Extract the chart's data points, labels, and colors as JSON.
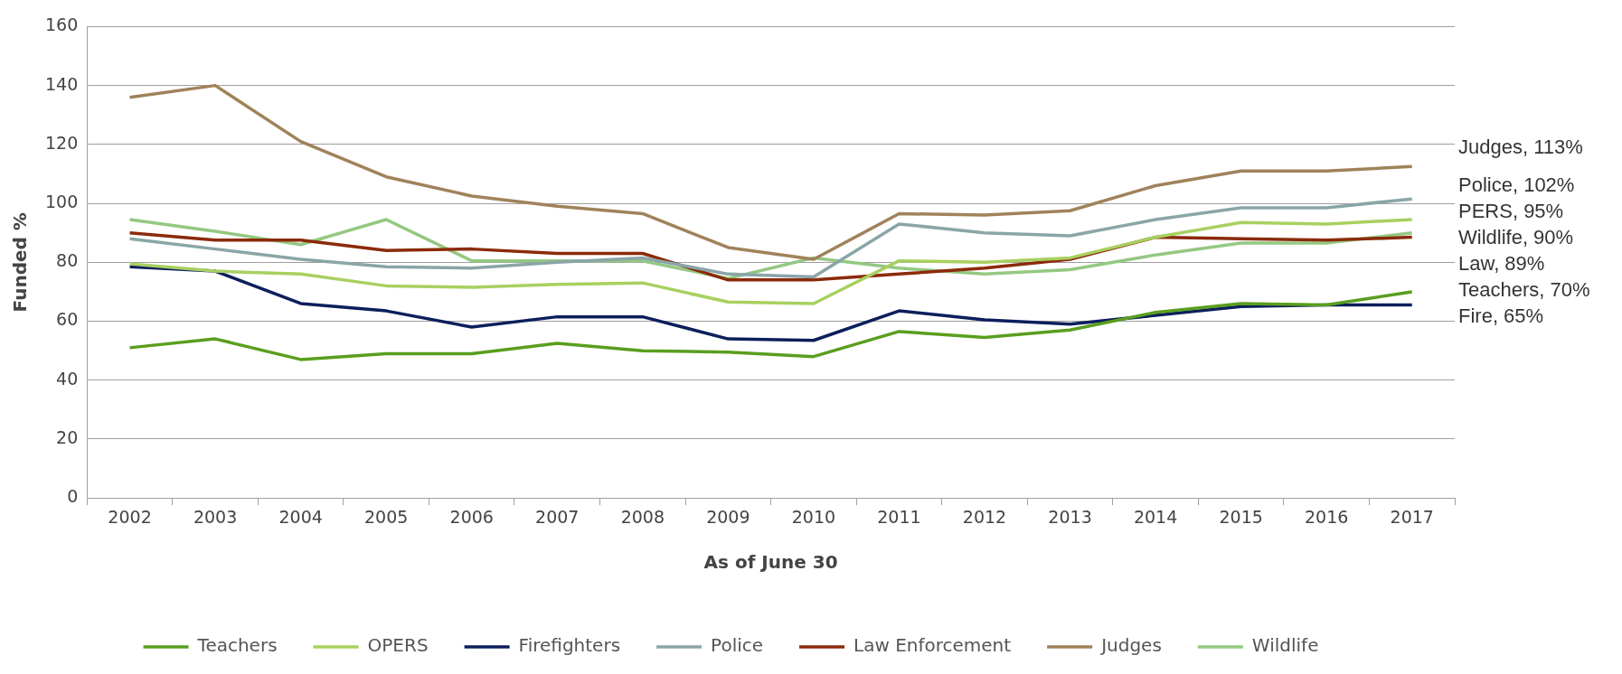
{
  "chart_data": {
    "type": "line",
    "xlabel": "As of June 30",
    "ylabel": "Funded %",
    "categories": [
      "2002",
      "2003",
      "2004",
      "2005",
      "2006",
      "2007",
      "2008",
      "2009",
      "2010",
      "2011",
      "2012",
      "2013",
      "2014",
      "2015",
      "2016",
      "2017"
    ],
    "series": [
      {
        "name": "Teachers",
        "color": "#5a9e1e",
        "values": [
          51,
          54,
          47,
          49,
          49,
          52.5,
          50,
          49.5,
          48,
          56.5,
          54.5,
          57,
          63,
          66,
          65.5,
          70
        ]
      },
      {
        "name": "OPERS",
        "color": "#a8d060",
        "values": [
          79.5,
          77,
          76,
          72,
          71.5,
          72.5,
          73,
          66.5,
          66,
          80.5,
          80,
          81.5,
          88.5,
          93.5,
          93,
          94.5
        ]
      },
      {
        "name": "Firefighters",
        "color": "#0c1f5c",
        "values": [
          78.5,
          77,
          66,
          63.5,
          58,
          61.5,
          61.5,
          54,
          53.5,
          63.5,
          60.5,
          59,
          62,
          65,
          65.5,
          65.5
        ]
      },
      {
        "name": "Police",
        "color": "#8aa5a8",
        "values": [
          88,
          84.5,
          81,
          78.5,
          78,
          80,
          81.5,
          76,
          75,
          93,
          90,
          89,
          94.5,
          98.5,
          98.5,
          101.5
        ]
      },
      {
        "name": "Law Enforcement",
        "color": "#8b2a0a",
        "values": [
          90,
          87.5,
          87.5,
          84,
          84.5,
          83,
          83,
          74,
          74,
          76,
          78,
          81,
          88.5,
          88,
          87.5,
          88.5
        ]
      },
      {
        "name": "Judges",
        "color": "#a0825a",
        "values": [
          136,
          140,
          121,
          109,
          102.5,
          99,
          96.5,
          85,
          81,
          96.5,
          96,
          97.5,
          106,
          111,
          111,
          112.5
        ]
      },
      {
        "name": "Wildlife",
        "color": "#94c882",
        "values": [
          94.5,
          90.5,
          86,
          94.5,
          80.5,
          80.5,
          80.5,
          74.5,
          81.5,
          78,
          76,
          77.5,
          82.5,
          86.5,
          86.5,
          90
        ]
      }
    ],
    "annotations": [
      "Judges, 113%",
      "Police, 102%",
      "PERS, 95%",
      "Wildlife, 90%",
      "Law, 89%",
      "Teachers, 70%",
      "Fire, 65%"
    ],
    "ylim": [
      0,
      160
    ],
    "yticks": [
      0,
      20,
      40,
      60,
      80,
      100,
      120,
      140,
      160
    ],
    "grid": "y",
    "legend": "bottom",
    "marker": "none",
    "line_style": "solid"
  }
}
